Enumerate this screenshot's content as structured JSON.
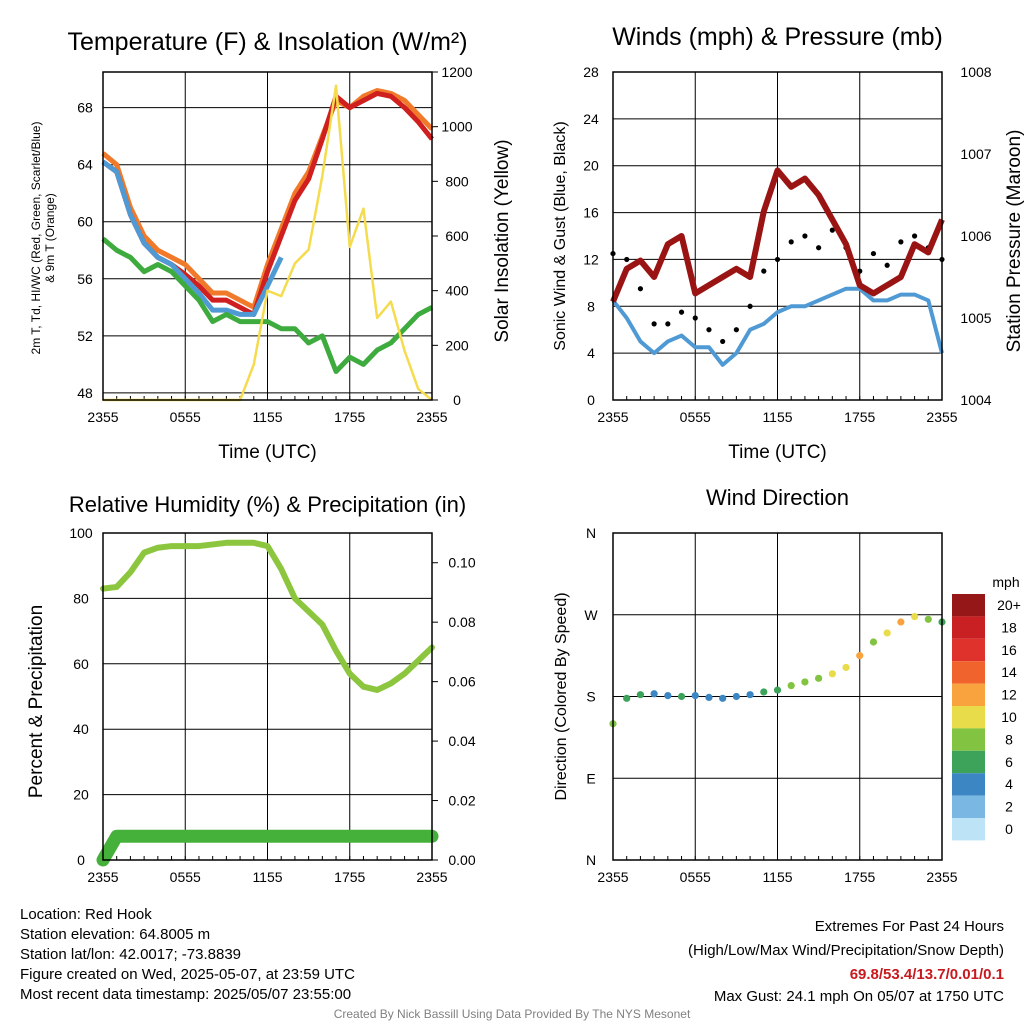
{
  "colors": {
    "red": "#cf1f1f",
    "orange": "#f07a2a",
    "green": "#3eab3e",
    "blue": "#4f9ad4",
    "yellow": "#f5dc4e",
    "maroon": "#9b1414",
    "black": "#000000",
    "humidity": "#8cc63f",
    "precip": "#45b03a",
    "extremes": "#c8191e",
    "credit": "#808080"
  },
  "speed_colorbar": {
    "unit": "mph",
    "labels": [
      "20+",
      "18",
      "16",
      "14",
      "12",
      "10",
      "8",
      "6",
      "4",
      "2",
      "0"
    ],
    "colors": [
      "#961717",
      "#c92024",
      "#e0322c",
      "#f0632c",
      "#f9a33f",
      "#e8dc4a",
      "#82c341",
      "#3ea35a",
      "#3c86c4",
      "#7ab7e2",
      "#bde3f6"
    ]
  },
  "chart_data": [
    {
      "type": "line",
      "title": "Temperature (F) & Insolation (W/m²)",
      "xlabel": "Time (UTC)",
      "ylabel": "2m T, Td, HI/WC (Red, Green, Scarlet/Blue) & 9m T (Orange)",
      "ylabel_right": "Solar Insolation (Yellow)",
      "x_ticks": [
        "2355",
        "0555",
        "1155",
        "1755",
        "2355"
      ],
      "ylim": [
        47.5,
        70.5
      ],
      "y_ticks": [
        48,
        52,
        56,
        60,
        64,
        68
      ],
      "ylim_right": [
        0,
        1200
      ],
      "y_ticks_right": [
        0,
        200,
        400,
        600,
        800,
        1000,
        1200
      ],
      "grid": true,
      "x_hours": [
        0,
        1,
        2,
        3,
        4,
        5,
        6,
        7,
        8,
        9,
        10,
        11,
        12,
        13,
        14,
        15,
        16,
        17,
        18,
        19,
        20,
        21,
        22,
        23,
        24
      ],
      "series": [
        {
          "key": "orange",
          "values": [
            64.8,
            64.0,
            61.0,
            59.0,
            58.0,
            57.5,
            57.0,
            56.0,
            55.0,
            55.0,
            54.5,
            54.0,
            57.0,
            59.5,
            62.0,
            63.5,
            66.0,
            68.5,
            68.0,
            68.8,
            69.2,
            69.0,
            68.5,
            67.5,
            66.5
          ]
        },
        {
          "key": "red",
          "values": [
            64.2,
            63.5,
            60.5,
            58.5,
            57.5,
            57.0,
            56.3,
            55.5,
            54.5,
            54.5,
            54.0,
            53.5,
            56.5,
            59.0,
            61.5,
            63.0,
            65.8,
            68.8,
            68.0,
            68.5,
            69.0,
            68.8,
            68.0,
            67.0,
            65.8
          ]
        },
        {
          "key": "blue",
          "values": [
            64.2,
            63.5,
            60.5,
            58.5,
            57.5,
            57.0,
            56.0,
            55.0,
            53.8,
            53.8,
            53.5,
            53.5,
            55.5,
            57.5
          ]
        },
        {
          "key": "green",
          "values": [
            58.8,
            58.0,
            57.5,
            56.5,
            57.0,
            56.5,
            55.5,
            54.5,
            53.0,
            53.5,
            53.0,
            53.0,
            53.0,
            52.5,
            52.5,
            51.5,
            52.0,
            49.5,
            50.5,
            50.0,
            51.0,
            51.5,
            52.5,
            53.5,
            54.0
          ]
        },
        {
          "key": "yellow",
          "axis": "right",
          "values": [
            0,
            0,
            0,
            0,
            0,
            0,
            0,
            0,
            0,
            0,
            0,
            130,
            400,
            380,
            500,
            550,
            820,
            1150,
            560,
            700,
            300,
            360,
            180,
            40,
            0
          ]
        }
      ]
    },
    {
      "type": "line",
      "title": "Winds (mph) & Pressure (mb)",
      "xlabel": "Time (UTC)",
      "ylabel": "Sonic Wind & Gust (Blue, Black)",
      "ylabel_right": "Station Pressure (Maroon)",
      "x_ticks": [
        "2355",
        "0555",
        "1155",
        "1755",
        "2355"
      ],
      "ylim": [
        0,
        28
      ],
      "y_ticks": [
        0,
        4,
        8,
        12,
        16,
        20,
        24,
        28
      ],
      "ylim_right": [
        1004,
        1008
      ],
      "y_ticks_right": [
        1004,
        1005,
        1006,
        1007,
        1008
      ],
      "grid": true,
      "x_hours": [
        0,
        1,
        2,
        3,
        4,
        5,
        6,
        7,
        8,
        9,
        10,
        11,
        12,
        13,
        14,
        15,
        16,
        17,
        18,
        19,
        20,
        21,
        22,
        23,
        24
      ],
      "series": [
        {
          "key": "blue",
          "values": [
            8.5,
            7.0,
            5.0,
            4.0,
            5.0,
            5.5,
            4.5,
            4.5,
            3.0,
            4.0,
            6.0,
            6.5,
            7.5,
            8.0,
            8.0,
            8.5,
            9.0,
            9.5,
            9.5,
            8.5,
            8.5,
            9.0,
            9.0,
            8.5,
            4.0
          ]
        },
        {
          "key": "black",
          "points": true,
          "values": [
            12.5,
            12.0,
            9.5,
            6.5,
            6.5,
            7.5,
            7.0,
            6.0,
            5.0,
            6.0,
            8.0,
            11.0,
            12.0,
            13.5,
            14.0,
            13.0,
            14.5,
            13.0,
            11.0,
            12.5,
            11.5,
            13.5,
            14.0,
            13.0,
            12.0
          ]
        },
        {
          "key": "maroon",
          "axis": "right",
          "values": [
            1005.2,
            1005.6,
            1005.7,
            1005.5,
            1005.9,
            1006.0,
            1005.3,
            1005.4,
            1005.5,
            1005.6,
            1005.5,
            1006.3,
            1006.8,
            1006.6,
            1006.7,
            1006.5,
            1006.2,
            1005.9,
            1005.4,
            1005.3,
            1005.4,
            1005.5,
            1005.9,
            1005.8,
            1006.2
          ]
        }
      ]
    },
    {
      "type": "line",
      "title": "Relative Humidity (%) & Precipitation (in)",
      "xlabel": "",
      "ylabel": "Percent & Precipitation",
      "x_ticks": [
        "2355",
        "0555",
        "1155",
        "1755",
        "2355"
      ],
      "ylim": [
        0,
        100
      ],
      "y_ticks": [
        0,
        20,
        40,
        60,
        80,
        100
      ],
      "ylim_right": [
        0,
        0.11
      ],
      "y_ticks_right": [
        "0.00",
        "0.02",
        "0.04",
        "0.06",
        "0.08",
        "0.10"
      ],
      "grid": true,
      "x_hours": [
        0,
        1,
        2,
        3,
        4,
        5,
        6,
        7,
        8,
        9,
        10,
        11,
        12,
        13,
        14,
        15,
        16,
        17,
        18,
        19,
        20,
        21,
        22,
        23,
        24
      ],
      "series": [
        {
          "key": "humidity",
          "values": [
            83,
            83.5,
            88,
            94,
            95.5,
            96,
            96,
            96,
            96.5,
            97,
            97,
            97,
            96,
            89,
            80,
            76,
            72,
            64,
            57,
            53,
            52,
            54,
            57,
            61,
            65
          ]
        },
        {
          "key": "precip",
          "axis": "right",
          "values": [
            0,
            0.008,
            0.008,
            0.008,
            0.008,
            0.008,
            0.008,
            0.008,
            0.008,
            0.008,
            0.008,
            0.008,
            0.008,
            0.008,
            0.008,
            0.008,
            0.008,
            0.008,
            0.008,
            0.008,
            0.008,
            0.008,
            0.008,
            0.008,
            0.008
          ]
        }
      ]
    },
    {
      "type": "scatter",
      "title": "Wind Direction",
      "xlabel": "",
      "ylabel": "Direction (Colored By Speed)",
      "x_ticks": [
        "2355",
        "0555",
        "1155",
        "1755",
        "2355"
      ],
      "y_ticks": [
        "N",
        "E",
        "S",
        "W",
        "N"
      ],
      "ylim": [
        0,
        360
      ],
      "grid": true,
      "x_hours": [
        0,
        1,
        2,
        3,
        4,
        5,
        6,
        7,
        8,
        9,
        10,
        11,
        12,
        13,
        14,
        15,
        16,
        17,
        18,
        19,
        20,
        21,
        22,
        23,
        24
      ],
      "direction_deg": [
        150,
        178,
        182,
        183,
        181,
        180,
        181,
        179,
        178,
        180,
        182,
        185,
        187,
        192,
        196,
        200,
        205,
        212,
        225,
        240,
        250,
        262,
        268,
        265,
        262
      ],
      "speed_mph": [
        8,
        6,
        6,
        4,
        4,
        5,
        4,
        4,
        3,
        3,
        4,
        5,
        6,
        7,
        7,
        8,
        9,
        10,
        11,
        8,
        10,
        11,
        10,
        8,
        6
      ]
    }
  ],
  "footer": {
    "location": "Location: Red Hook",
    "elevation": "Station elevation: 64.8005 m",
    "latlon": "Station lat/lon: 42.0017; -73.8839",
    "created": "Figure created on Wed, 2025-05-07, at 23:59 UTC",
    "recent": "Most recent data timestamp: 2025/05/07 23:55:00",
    "extremes_title": "Extremes For Past 24 Hours",
    "extremes_sub": "(High/Low/Max Wind/Precipitation/Snow Depth)",
    "extremes_values": "69.8/53.4/13.7/0.01/0.1",
    "max_gust": "Max Gust: 24.1 mph On 05/07 at 1750 UTC",
    "credit": "Created By Nick Bassill Using Data Provided By The NYS Mesonet"
  }
}
